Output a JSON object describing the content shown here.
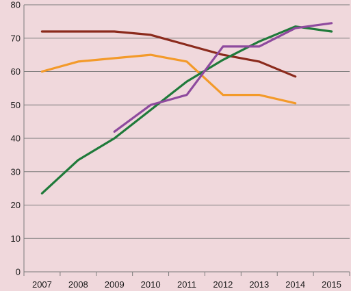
{
  "chart_data": {
    "type": "line",
    "title": "",
    "xlabel": "",
    "ylabel": "",
    "x": [
      "2007",
      "2008",
      "2009",
      "2010",
      "2011",
      "2012",
      "2013",
      "2014",
      "2015"
    ],
    "ylim": [
      0,
      80
    ],
    "yticks": [
      0,
      10,
      20,
      30,
      40,
      50,
      60,
      70,
      80
    ],
    "grid": true,
    "legend": "none",
    "series": [
      {
        "color": "#8b2a1c",
        "values": [
          72,
          72,
          72,
          71,
          68,
          65,
          63,
          58.5,
          null
        ]
      },
      {
        "color": "#f39a2a",
        "values": [
          60,
          63,
          64,
          65,
          63,
          53,
          53,
          50.5,
          null
        ]
      },
      {
        "color": "#1f7a3a",
        "values": [
          23.5,
          33.5,
          40,
          48.5,
          57,
          63.5,
          69,
          73.5,
          72
        ]
      },
      {
        "color": "#8e4a9e",
        "values": [
          null,
          null,
          42,
          50,
          53,
          67.5,
          67.5,
          73,
          74.5
        ]
      }
    ]
  }
}
